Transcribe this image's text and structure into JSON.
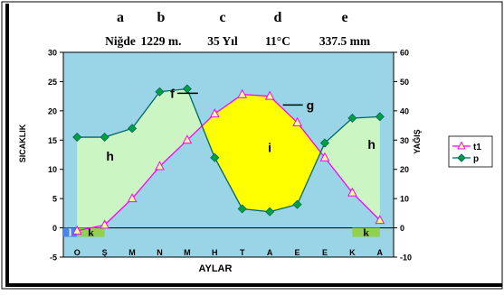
{
  "chart_data": {
    "type": "line",
    "header_letters": [
      "a",
      "b",
      "c",
      "d",
      "e"
    ],
    "header_values": [
      "Niğde",
      "1229 m.",
      "35 Yıl",
      "11°C",
      "337.5 mm"
    ],
    "xlabel": "AYLAR",
    "ylabel_left": "SICAKLIK",
    "ylabel_right": "YAĞIŞ",
    "categories": [
      "O",
      "Ş",
      "M",
      "N",
      "M",
      "H",
      "T",
      "A",
      "E",
      "E",
      "K",
      "A"
    ],
    "ylim_left": [
      -5,
      30
    ],
    "ylim_right": [
      -10,
      60
    ],
    "yticks_left": [
      -5,
      0,
      5,
      10,
      15,
      20,
      25,
      30
    ],
    "yticks_right": [
      -10,
      0,
      10,
      20,
      30,
      40,
      50,
      60
    ],
    "series": [
      {
        "name": "t1",
        "axis": "left",
        "color": "#ff00ff",
        "marker": "triangle",
        "values": [
          -0.5,
          0.5,
          5.0,
          10.5,
          15.0,
          19.5,
          22.8,
          22.5,
          18.0,
          12.0,
          6.0,
          1.3
        ]
      },
      {
        "name": "p",
        "axis": "right",
        "color": "#006666",
        "marker": "diamond",
        "values": [
          31.0,
          31.0,
          34.0,
          46.5,
          47.5,
          24.0,
          6.5,
          5.5,
          8.0,
          29.0,
          37.5,
          38.0
        ]
      }
    ],
    "region_labels": [
      {
        "text": "h",
        "month": 1.2,
        "temp": 11.5
      },
      {
        "text": "i",
        "month": 7.0,
        "temp": 13.0
      },
      {
        "text": "h",
        "month": 10.7,
        "temp": 13.5
      }
    ],
    "callouts": [
      {
        "text": "f",
        "month": 3.8,
        "temp": 23.0
      },
      {
        "text": "g",
        "month": 8.2,
        "temp": 21.0
      }
    ],
    "period_marks": [
      {
        "text": "l",
        "start": 0,
        "end": 0.5,
        "color": "#4a86e8"
      },
      {
        "text": "k",
        "start": 0.5,
        "end": 1.5,
        "color": "#92d050"
      },
      {
        "text": "k",
        "start": 10.5,
        "end": 11.5,
        "color": "#92d050"
      }
    ],
    "colors": {
      "plot_background": "#99d5e6",
      "humid": "#ccf5c4",
      "dry": "#ffff00",
      "frame": "#000000"
    },
    "legend_position": "right",
    "grid": false
  }
}
